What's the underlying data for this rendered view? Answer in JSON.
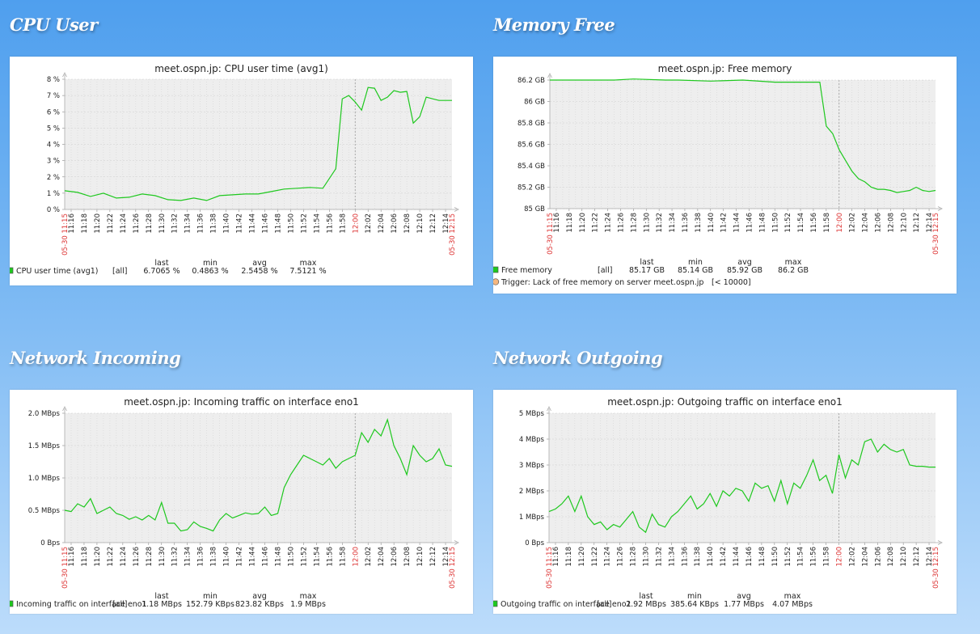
{
  "panels": [
    {
      "title": "CPU User"
    },
    {
      "title": "Memory Free"
    },
    {
      "title": "Network Incoming"
    },
    {
      "title": "Network Outgoing"
    }
  ],
  "chart_data": [
    {
      "type": "line",
      "title": "meet.ospn.jp: CPU user time (avg1)",
      "y_ticks": [
        "0 %",
        "1 %",
        "2 %",
        "3 %",
        "4 %",
        "5 %",
        "6 %",
        "7 %",
        "8 %"
      ],
      "ylim": [
        0,
        8
      ],
      "x_ticks": [
        "11:16",
        "11:18",
        "11:20",
        "11:22",
        "11:24",
        "11:26",
        "11:28",
        "11:30",
        "11:32",
        "11:34",
        "11:36",
        "11:38",
        "11:40",
        "11:42",
        "11:44",
        "11:46",
        "11:48",
        "11:50",
        "11:52",
        "11:54",
        "11:56",
        "11:58",
        "12:00",
        "12:02",
        "12:04",
        "12:06",
        "12:08",
        "12:10",
        "12:12",
        "12:14"
      ],
      "x_start": "05-30 11:15",
      "x_end": "05-30 12:15",
      "x_mid": "12:00",
      "series": [
        {
          "name": "CPU user time (avg1)",
          "color": "#1ec81e",
          "x": [
            0,
            2,
            4,
            6,
            8,
            10,
            12,
            14,
            16,
            18,
            20,
            22,
            24,
            26,
            28,
            30,
            32,
            34,
            36,
            38,
            40,
            42,
            43,
            44,
            45,
            46,
            47,
            48,
            49,
            50,
            51,
            52,
            53,
            54,
            55,
            56,
            57,
            58,
            59,
            60
          ],
          "values": [
            1.15,
            1.05,
            0.8,
            1.0,
            0.7,
            0.75,
            0.95,
            0.85,
            0.6,
            0.55,
            0.7,
            0.55,
            0.85,
            0.9,
            0.95,
            0.95,
            1.1,
            1.25,
            1.3,
            1.35,
            1.3,
            2.5,
            6.8,
            7.0,
            6.6,
            6.1,
            7.5,
            7.45,
            6.7,
            6.9,
            7.3,
            7.2,
            7.25,
            5.3,
            5.7,
            6.9,
            6.8,
            6.7,
            6.7,
            6.7
          ]
        }
      ],
      "legend": {
        "name": "CPU user time (avg1)",
        "func": "[all]",
        "last": "6.7065 %",
        "min": "0.4863 %",
        "avg": "2.5458 %",
        "max": "7.5121 %"
      },
      "legend_headers": [
        "last",
        "min",
        "avg",
        "max"
      ]
    },
    {
      "type": "line",
      "title": "meet.ospn.jp: Free memory",
      "y_ticks": [
        "85 GB",
        "85.2 GB",
        "85.4 GB",
        "85.6 GB",
        "85.8 GB",
        "86 GB",
        "86.2 GB"
      ],
      "ylim": [
        85,
        86.2
      ],
      "x_ticks": [
        "11:16",
        "11:18",
        "11:20",
        "11:22",
        "11:24",
        "11:26",
        "11:28",
        "11:30",
        "11:32",
        "11:34",
        "11:36",
        "11:38",
        "11:40",
        "11:42",
        "11:44",
        "11:46",
        "11:48",
        "11:50",
        "11:52",
        "11:54",
        "11:56",
        "11:58",
        "12:00",
        "12:02",
        "12:04",
        "12:06",
        "12:08",
        "12:10",
        "12:12",
        "12:14"
      ],
      "x_start": "05-30 11:15",
      "x_end": "05-30 12:15",
      "x_mid": "12:00",
      "series": [
        {
          "name": "Free memory",
          "color": "#1ec81e",
          "x": [
            0,
            10,
            13,
            18,
            20,
            25,
            30,
            35,
            40,
            42,
            43,
            44,
            45,
            46,
            47,
            48,
            49,
            50,
            51,
            52,
            53,
            54,
            55,
            56,
            57,
            58,
            59,
            60
          ],
          "values": [
            86.2,
            86.2,
            86.21,
            86.2,
            86.2,
            86.19,
            86.2,
            86.18,
            86.18,
            86.18,
            85.77,
            85.7,
            85.55,
            85.45,
            85.35,
            85.28,
            85.25,
            85.2,
            85.18,
            85.18,
            85.17,
            85.15,
            85.16,
            85.17,
            85.2,
            85.17,
            85.16,
            85.17
          ]
        }
      ],
      "legend": {
        "name": "Free memory",
        "func": "[all]",
        "last": "85.17 GB",
        "min": "85.14 GB",
        "avg": "85.92 GB",
        "max": "86.2 GB"
      },
      "legend_headers": [
        "last",
        "min",
        "avg",
        "max"
      ],
      "trigger": "Trigger: Lack of free memory on server meet.ospn.jp",
      "trigger_value": "[< 10000]"
    },
    {
      "type": "line",
      "title": "meet.ospn.jp: Incoming traffic on interface eno1",
      "y_ticks": [
        "0 Bps",
        "0.5 MBps",
        "1.0 MBps",
        "1.5 MBps",
        "2.0 MBps"
      ],
      "ylim": [
        0,
        2.0
      ],
      "x_ticks": [
        "11:16",
        "11:18",
        "11:20",
        "11:22",
        "11:24",
        "11:26",
        "11:28",
        "11:30",
        "11:32",
        "11:34",
        "11:36",
        "11:38",
        "11:40",
        "11:42",
        "11:44",
        "11:46",
        "11:48",
        "11:50",
        "11:52",
        "11:54",
        "11:56",
        "11:58",
        "12:00",
        "12:02",
        "12:04",
        "12:06",
        "12:08",
        "12:10",
        "12:12",
        "12:14"
      ],
      "x_start": "05-30 11:15",
      "x_end": "05-30 12:15",
      "x_mid": "12:00",
      "series": [
        {
          "name": "Incoming traffic on interface eno1",
          "color": "#1ec81e",
          "x": [
            0,
            1,
            2,
            3,
            4,
            5,
            6,
            7,
            8,
            9,
            10,
            11,
            12,
            13,
            14,
            15,
            16,
            17,
            18,
            19,
            20,
            21,
            22,
            23,
            24,
            25,
            26,
            27,
            28,
            29,
            30,
            31,
            32,
            33,
            34,
            35,
            36,
            37,
            38,
            39,
            40,
            41,
            42,
            43,
            44,
            45,
            46,
            47,
            48,
            49,
            50,
            51,
            52,
            53,
            54,
            55,
            56,
            57,
            58,
            59,
            60
          ],
          "values": [
            0.5,
            0.48,
            0.6,
            0.55,
            0.68,
            0.45,
            0.5,
            0.55,
            0.45,
            0.42,
            0.36,
            0.4,
            0.35,
            0.42,
            0.35,
            0.62,
            0.3,
            0.3,
            0.18,
            0.2,
            0.32,
            0.25,
            0.22,
            0.18,
            0.35,
            0.45,
            0.38,
            0.42,
            0.46,
            0.44,
            0.45,
            0.55,
            0.42,
            0.45,
            0.85,
            1.05,
            1.2,
            1.35,
            1.3,
            1.25,
            1.2,
            1.3,
            1.15,
            1.25,
            1.3,
            1.35,
            1.7,
            1.55,
            1.75,
            1.65,
            1.9,
            1.5,
            1.3,
            1.05,
            1.5,
            1.35,
            1.25,
            1.3,
            1.45,
            1.2,
            1.18
          ]
        }
      ],
      "legend": {
        "name": "Incoming traffic on interface eno1",
        "func": "[all]",
        "last": "1.18 MBps",
        "min": "152.79 KBps",
        "avg": "823.82 KBps",
        "max": "1.9 MBps"
      },
      "legend_headers": [
        "last",
        "min",
        "avg",
        "max"
      ]
    },
    {
      "type": "line",
      "title": "meet.ospn.jp: Outgoing traffic on interface eno1",
      "y_ticks": [
        "0 Bps",
        "1 MBps",
        "2 MBps",
        "3 MBps",
        "4 MBps",
        "5 MBps"
      ],
      "ylim": [
        0,
        5
      ],
      "x_ticks": [
        "11:16",
        "11:18",
        "11:20",
        "11:22",
        "11:24",
        "11:26",
        "11:28",
        "11:30",
        "11:32",
        "11:34",
        "11:36",
        "11:38",
        "11:40",
        "11:42",
        "11:44",
        "11:46",
        "11:48",
        "11:50",
        "11:52",
        "11:54",
        "11:56",
        "11:58",
        "12:00",
        "12:02",
        "12:04",
        "12:06",
        "12:08",
        "12:10",
        "12:12",
        "12:14"
      ],
      "x_start": "05-30 11:15",
      "x_end": "05-30 12:15",
      "x_mid": "12:00",
      "series": [
        {
          "name": "Outgoing traffic on interface eno1",
          "color": "#1ec81e",
          "x": [
            0,
            1,
            2,
            3,
            4,
            5,
            6,
            7,
            8,
            9,
            10,
            11,
            12,
            13,
            14,
            15,
            16,
            17,
            18,
            19,
            20,
            21,
            22,
            23,
            24,
            25,
            26,
            27,
            28,
            29,
            30,
            31,
            32,
            33,
            34,
            35,
            36,
            37,
            38,
            39,
            40,
            41,
            42,
            43,
            44,
            45,
            46,
            47,
            48,
            49,
            50,
            51,
            52,
            53,
            54,
            55,
            56,
            57,
            58,
            59,
            60
          ],
          "values": [
            1.2,
            1.3,
            1.5,
            1.8,
            1.2,
            1.8,
            1.0,
            0.7,
            0.8,
            0.5,
            0.7,
            0.6,
            0.9,
            1.2,
            0.6,
            0.4,
            1.1,
            0.7,
            0.6,
            1.0,
            1.2,
            1.5,
            1.8,
            1.3,
            1.5,
            1.9,
            1.4,
            2.0,
            1.8,
            2.1,
            2.0,
            1.6,
            2.3,
            2.1,
            2.2,
            1.6,
            2.4,
            1.5,
            2.3,
            2.1,
            2.6,
            3.2,
            2.4,
            2.6,
            1.9,
            3.4,
            2.5,
            3.2,
            3.0,
            3.9,
            4.0,
            3.5,
            3.8,
            3.6,
            3.5,
            3.6,
            3.0,
            2.95,
            2.95,
            2.92,
            2.92
          ]
        }
      ],
      "legend": {
        "name": "Outgoing traffic on interface eno1",
        "func": "[all]",
        "last": "2.92 MBps",
        "min": "385.64 KBps",
        "avg": "1.77 MBps",
        "max": "4.07 MBps"
      },
      "legend_headers": [
        "last",
        "min",
        "avg",
        "max"
      ]
    }
  ]
}
